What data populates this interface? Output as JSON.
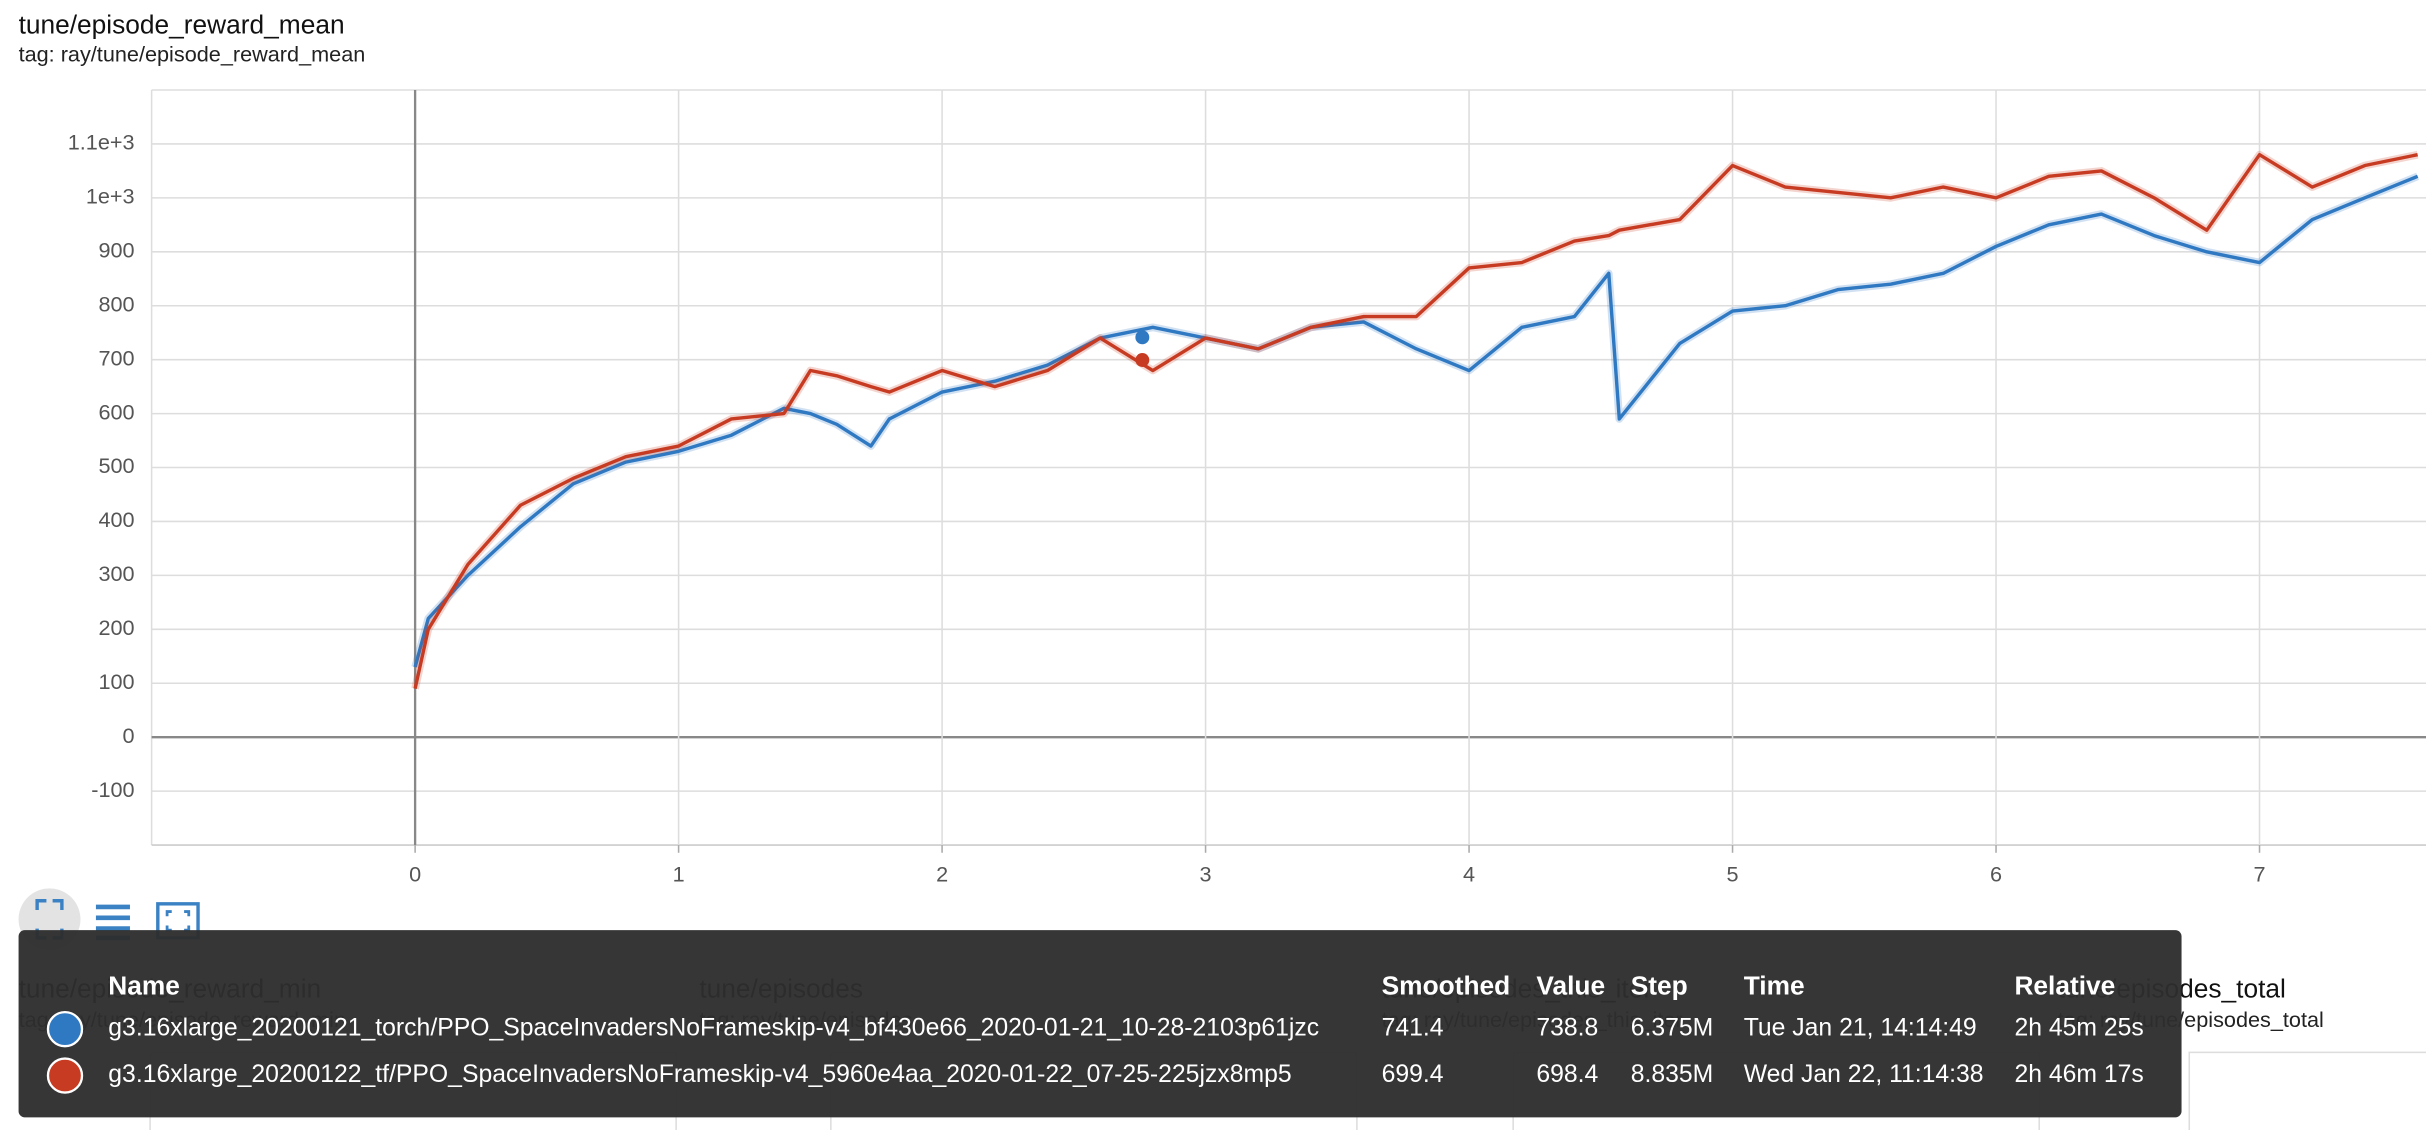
{
  "chart_data": {
    "type": "line",
    "title": "tune/episode_reward_mean",
    "subtitle": "tag: ray/tune/episode_reward_mean",
    "xlim": [
      -1,
      7.63
    ],
    "xticks": [
      0,
      1,
      2,
      3,
      4,
      5,
      6,
      7
    ],
    "ylim": [
      -200,
      1200
    ],
    "yticks": [
      -100,
      0,
      100,
      200,
      300,
      400,
      500,
      600,
      700,
      800,
      900,
      {
        "value": 1000,
        "label": "1e+3"
      },
      {
        "value": 1100,
        "label": "1.1e+3"
      }
    ],
    "grid": true,
    "hover_x": 2.76,
    "x": [
      0,
      0.05,
      0.2,
      0.4,
      0.6,
      0.8,
      1.0,
      1.2,
      1.4,
      1.5,
      1.6,
      1.73,
      1.8,
      2.0,
      2.2,
      2.4,
      2.6,
      2.8,
      3.0,
      3.2,
      3.4,
      3.6,
      3.8,
      4.0,
      4.2,
      4.4,
      4.53,
      4.57,
      4.8,
      5.0,
      5.2,
      5.4,
      5.6,
      5.8,
      6.0,
      6.2,
      6.4,
      6.6,
      6.8,
      7.0,
      7.2,
      7.4,
      7.6
    ],
    "series": [
      {
        "name": "g3.16xlarge_20200121_torch/PPO_SpaceInvadersNoFrameskip-v4_bf430e66_2020-01-21_10-28-2103p61jzc",
        "color": "#2f78c2",
        "values": [
          130,
          220,
          300,
          390,
          470,
          510,
          530,
          560,
          610,
          600,
          580,
          540,
          590,
          640,
          660,
          690,
          740,
          760,
          740,
          720,
          760,
          770,
          720,
          680,
          760,
          780,
          860,
          590,
          730,
          790,
          800,
          830,
          840,
          860,
          910,
          950,
          970,
          930,
          900,
          880,
          960,
          1000,
          1040
        ]
      },
      {
        "name": "g3.16xlarge_20200122_tf/PPO_SpaceInvadersNoFrameskip-v4_5960e4aa_2020-01-22_07-25-225jzx8mp5",
        "color": "#c73b22",
        "values": [
          90,
          200,
          320,
          430,
          480,
          520,
          540,
          590,
          600,
          680,
          670,
          650,
          640,
          680,
          650,
          680,
          740,
          680,
          740,
          720,
          760,
          780,
          780,
          870,
          880,
          920,
          930,
          940,
          960,
          1060,
          1020,
          1010,
          1000,
          1020,
          1000,
          1040,
          1050,
          1000,
          940,
          1080,
          1020,
          1060,
          1080
        ]
      }
    ]
  },
  "panels": [
    {
      "title": "tune/episode_reward_min",
      "tag": "tag: ray/tune/episode_reward_min"
    },
    {
      "title": "tune/episodes",
      "tag": "tag: ray/tune/episodes"
    },
    {
      "title": "tune/episodes_this_iter",
      "tag": "tag: ray/tune/episodes_this_iter"
    },
    {
      "title": "tune/episodes_total",
      "tag": "tag: ray/tune/episodes_total"
    }
  ],
  "tooltip": {
    "headers": [
      "Name",
      "Smoothed",
      "Value",
      "Step",
      "Time",
      "Relative"
    ],
    "rows": [
      [
        "g3.16xlarge_20200121_torch/PPO_SpaceInvadersNoFrameskip-v4_bf430e66_2020-01-21_10-28-2103p61jzc",
        "741.4",
        "738.8",
        "6.375M",
        "Tue Jan 21, 14:14:49",
        "2h 45m 25s"
      ],
      [
        "g3.16xlarge_20200122_tf/PPO_SpaceInvadersNoFrameskip-v4_5960e4aa_2020-01-22_07-25-225jzx8mp5",
        "699.4",
        "698.4",
        "8.835M",
        "Wed Jan 22, 11:14:38",
        "2h 46m 17s"
      ]
    ]
  }
}
